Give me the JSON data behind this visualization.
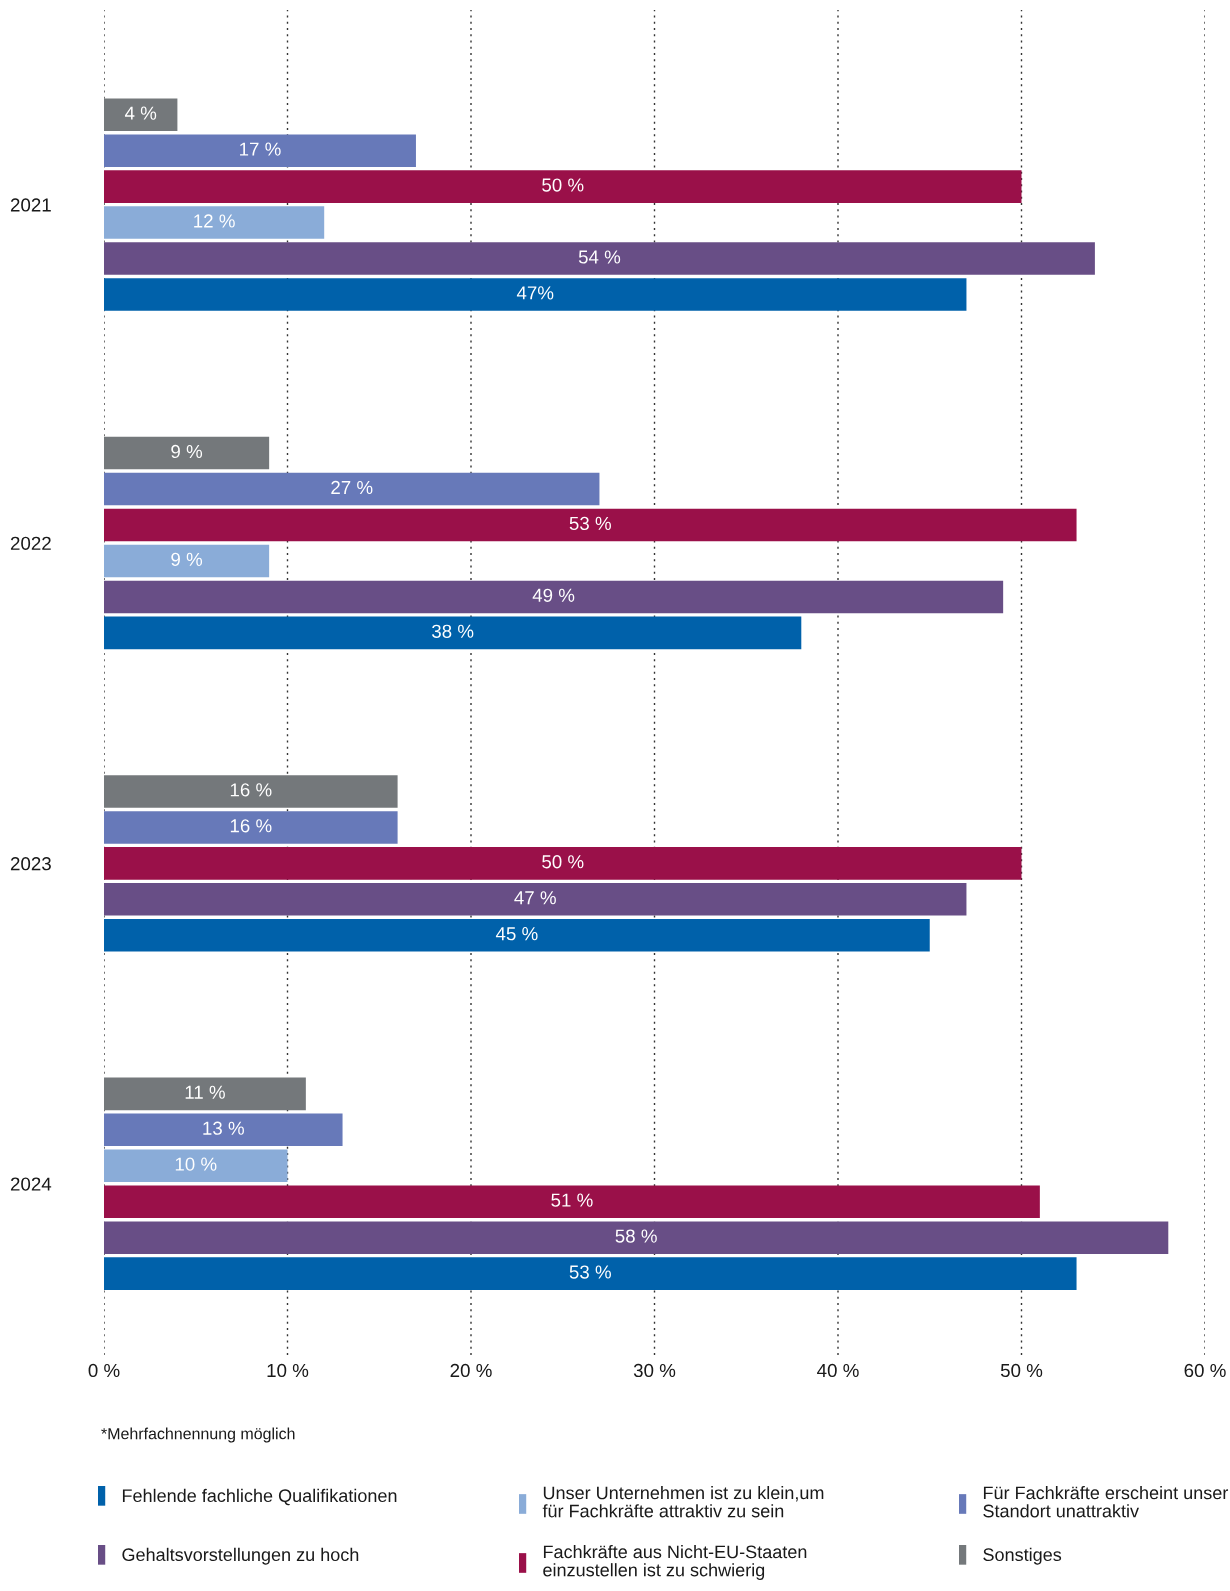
{
  "chart_data": {
    "type": "bar",
    "orientation": "horizontal",
    "categories": [
      "2021",
      "2022",
      "2023",
      "2024"
    ],
    "series": [
      {
        "name": "Fehlende fachliche Qualifikationen",
        "color": "#0061aa",
        "values": [
          47,
          38,
          45,
          53
        ],
        "value_labels": [
          "47%",
          "38 %",
          "45 %",
          "53 %"
        ]
      },
      {
        "name": "Gehaltsvorstellungen zu hoch",
        "color": "#684e86",
        "values": [
          54,
          49,
          47,
          58
        ],
        "value_labels": [
          "54 %",
          "49 %",
          "47 %",
          "58 %"
        ]
      },
      {
        "name": "Unser Unternehmen ist zu klein,um\nfür Fachkräfte attraktiv zu sein",
        "color": "#8aacd8",
        "values": [
          12,
          9,
          null,
          null
        ],
        "value_labels": [
          "12 %",
          "9 %",
          null,
          null
        ]
      },
      {
        "name": "Fachkräfte aus Nicht-EU-Staaten\neinzustellen ist zu schwierig",
        "color": "#9a1049",
        "values": [
          50,
          53,
          50,
          51
        ],
        "value_labels": [
          "50 %",
          "53 %",
          "50 %",
          "51 %"
        ]
      },
      {
        "color": "#8aacd8",
        "values": [
          null,
          null,
          null,
          10
        ],
        "value_labels": [
          null,
          null,
          null,
          "10 %"
        ]
      },
      {
        "name": "Für Fachkräfte erscheint unser\nStandort unattraktiv",
        "color": "#6779b9",
        "values": [
          17,
          27,
          16,
          13
        ],
        "value_labels": [
          "17 %",
          "27 %",
          "16 %",
          "13 %"
        ]
      },
      {
        "name": "Sonstiges",
        "color": "#74787b",
        "values": [
          4,
          9,
          16,
          11
        ],
        "value_labels": [
          "4 %",
          "9 %",
          "16 %",
          "11 %"
        ]
      }
    ],
    "xlim": [
      0,
      60
    ],
    "xticks": [
      {
        "value": 0,
        "label": "0 %"
      },
      {
        "value": 10,
        "label": "10 %"
      },
      {
        "value": 20,
        "label": "20 %"
      },
      {
        "value": 30,
        "label": "30 %"
      },
      {
        "value": 40,
        "label": "40 %"
      },
      {
        "value": 50,
        "label": "50 %"
      },
      {
        "value": 60,
        "label": "60 %"
      }
    ],
    "grid": "x",
    "legend": "bottom",
    "annotations": [
      "*Mehrfachnennung möglich"
    ]
  }
}
